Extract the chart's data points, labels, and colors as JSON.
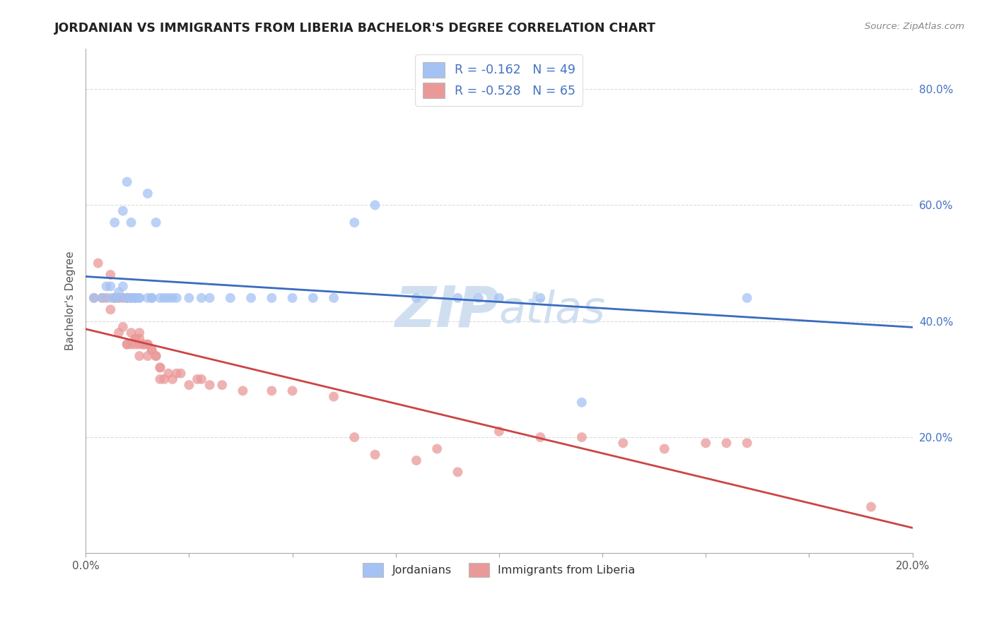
{
  "title": "JORDANIAN VS IMMIGRANTS FROM LIBERIA BACHELOR'S DEGREE CORRELATION CHART",
  "source_text": "Source: ZipAtlas.com",
  "ylabel": "Bachelor's Degree",
  "xlim": [
    0.0,
    0.2
  ],
  "ylim": [
    0.0,
    0.87
  ],
  "xticks": [
    0.0,
    0.025,
    0.05,
    0.075,
    0.1,
    0.125,
    0.15,
    0.175,
    0.2
  ],
  "xtick_labels_show": [
    true,
    false,
    false,
    false,
    false,
    false,
    false,
    false,
    true
  ],
  "yticks": [
    0.0,
    0.2,
    0.4,
    0.6,
    0.8
  ],
  "ytick_labels": [
    "",
    "20.0%",
    "40.0%",
    "60.0%",
    "80.0%"
  ],
  "legend_labels": [
    "Jordanians",
    "Immigrants from Liberia"
  ],
  "r_jordanian": -0.162,
  "n_jordanian": 49,
  "r_liberia": -0.528,
  "n_liberia": 65,
  "blue_color": "#a4c2f4",
  "pink_color": "#ea9999",
  "blue_line_color": "#3a6bbf",
  "pink_line_color": "#cc4444",
  "watermark_color": "#d0dff0",
  "background_color": "#ffffff",
  "grid_color": "#dddddd",
  "title_color": "#222222",
  "axis_label_color": "#555555",
  "tick_color": "#555555",
  "legend_text_color": "#4472c4",
  "jordanian_x": [
    0.002,
    0.004,
    0.005,
    0.006,
    0.006,
    0.007,
    0.007,
    0.008,
    0.008,
    0.009,
    0.009,
    0.01,
    0.01,
    0.01,
    0.011,
    0.011,
    0.012,
    0.012,
    0.012,
    0.013,
    0.013,
    0.015,
    0.015,
    0.016,
    0.016,
    0.017,
    0.018,
    0.019,
    0.02,
    0.021,
    0.022,
    0.025,
    0.028,
    0.03,
    0.035,
    0.04,
    0.045,
    0.05,
    0.055,
    0.06,
    0.065,
    0.07,
    0.08,
    0.09,
    0.095,
    0.1,
    0.11,
    0.12,
    0.16
  ],
  "jordanian_y": [
    0.44,
    0.44,
    0.46,
    0.44,
    0.46,
    0.44,
    0.57,
    0.44,
    0.45,
    0.46,
    0.59,
    0.44,
    0.44,
    0.64,
    0.44,
    0.57,
    0.44,
    0.44,
    0.44,
    0.44,
    0.44,
    0.44,
    0.62,
    0.44,
    0.44,
    0.57,
    0.44,
    0.44,
    0.44,
    0.44,
    0.44,
    0.44,
    0.44,
    0.44,
    0.44,
    0.44,
    0.44,
    0.44,
    0.44,
    0.44,
    0.57,
    0.6,
    0.44,
    0.44,
    0.44,
    0.44,
    0.44,
    0.26,
    0.44
  ],
  "liberia_x": [
    0.002,
    0.003,
    0.004,
    0.005,
    0.006,
    0.006,
    0.007,
    0.007,
    0.008,
    0.008,
    0.009,
    0.009,
    0.01,
    0.01,
    0.01,
    0.011,
    0.011,
    0.011,
    0.012,
    0.012,
    0.012,
    0.013,
    0.013,
    0.013,
    0.013,
    0.014,
    0.014,
    0.015,
    0.015,
    0.015,
    0.016,
    0.016,
    0.017,
    0.017,
    0.018,
    0.018,
    0.018,
    0.019,
    0.02,
    0.021,
    0.022,
    0.023,
    0.025,
    0.027,
    0.028,
    0.03,
    0.033,
    0.038,
    0.045,
    0.05,
    0.06,
    0.065,
    0.07,
    0.08,
    0.085,
    0.09,
    0.1,
    0.11,
    0.12,
    0.13,
    0.14,
    0.15,
    0.155,
    0.16,
    0.19
  ],
  "liberia_y": [
    0.44,
    0.5,
    0.44,
    0.44,
    0.48,
    0.42,
    0.44,
    0.44,
    0.38,
    0.44,
    0.44,
    0.39,
    0.36,
    0.44,
    0.36,
    0.36,
    0.38,
    0.44,
    0.37,
    0.36,
    0.37,
    0.37,
    0.36,
    0.34,
    0.38,
    0.36,
    0.36,
    0.34,
    0.36,
    0.36,
    0.35,
    0.35,
    0.34,
    0.34,
    0.32,
    0.3,
    0.32,
    0.3,
    0.31,
    0.3,
    0.31,
    0.31,
    0.29,
    0.3,
    0.3,
    0.29,
    0.29,
    0.28,
    0.28,
    0.28,
    0.27,
    0.2,
    0.17,
    0.16,
    0.18,
    0.14,
    0.21,
    0.2,
    0.2,
    0.19,
    0.18,
    0.19,
    0.19,
    0.19,
    0.08
  ]
}
